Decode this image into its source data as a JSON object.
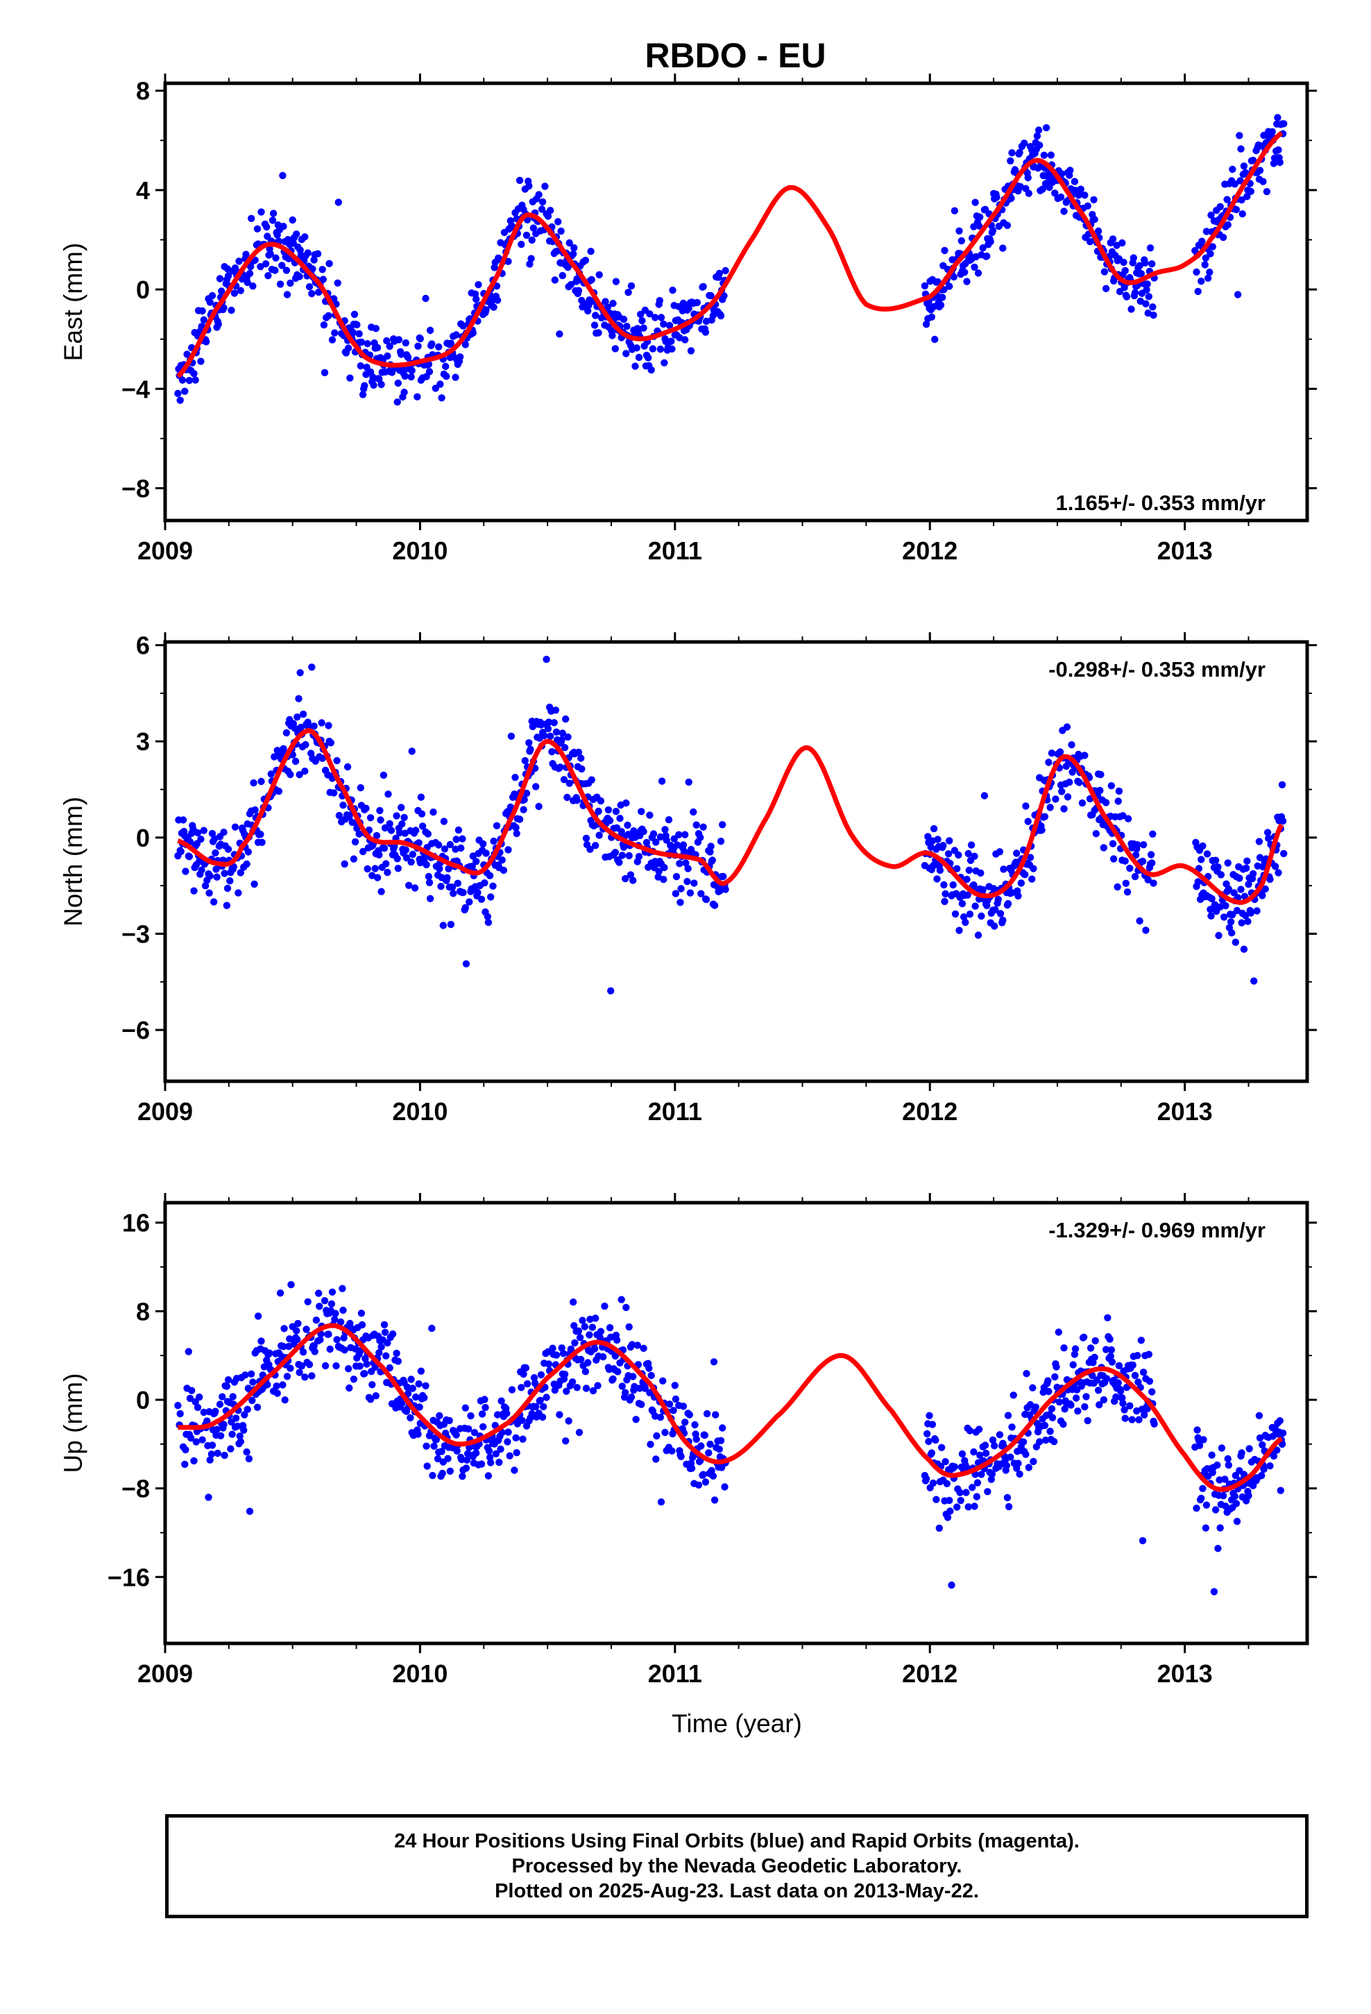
{
  "title": "RBDO - EU",
  "xlabel": "Time (year)",
  "footer": {
    "line1": "24 Hour Positions Using Final Orbits (blue) and Rapid Orbits (magenta).",
    "line2": "Processed by the Nevada Geodetic Laboratory.",
    "line3": "Plotted on 2025-Aug-23. Last data on 2013-May-22."
  },
  "colors": {
    "points": "#0000ff",
    "model": "#ff0000",
    "axes": "#000000"
  },
  "chart_data": [
    {
      "type": "scatter",
      "component": "east",
      "ylabel": "East (mm)",
      "rate": "1.165+/- 0.353 mm/yr",
      "xlim": [
        2009.0,
        2013.48
      ],
      "ylim": [
        -9.3,
        8.3
      ],
      "yticks": [
        8,
        4,
        0,
        -4,
        -8
      ],
      "yticklabels": [
        "8",
        "4",
        "0",
        "−4",
        "−8"
      ],
      "xticks": [
        2009,
        2010,
        2011,
        2012,
        2013
      ],
      "xticklabels": [
        "2009",
        "2010",
        "2011",
        "2012",
        "2013"
      ],
      "model_curve": {
        "name": "",
        "x": [
          2009.05,
          2009.2,
          2009.4,
          2009.6,
          2009.75,
          2009.85,
          2010.0,
          2010.15,
          2010.3,
          2010.42,
          2010.6,
          2010.8,
          2011.0,
          2011.15,
          2011.3,
          2011.45,
          2011.6,
          2011.75,
          2012.0,
          2012.1,
          2012.25,
          2012.42,
          2012.6,
          2012.75,
          2012.9,
          2013.0,
          2013.1,
          2013.25,
          2013.38
        ],
        "y": [
          -3.5,
          -0.8,
          1.8,
          0.3,
          -2.3,
          -3.0,
          -2.9,
          -2.2,
          0.5,
          3.0,
          1.0,
          -1.8,
          -1.6,
          -0.5,
          2.0,
          4.1,
          2.5,
          -0.6,
          -0.3,
          1.0,
          3.0,
          5.2,
          3.0,
          0.4,
          0.7,
          1.0,
          2.0,
          4.5,
          6.3
        ]
      },
      "points": {
        "segments": [
          {
            "start": 2009.05,
            "end": 2011.2,
            "density": 0.003
          },
          {
            "start": 2011.98,
            "end": 2012.88,
            "density": 0.003
          },
          {
            "start": 2013.04,
            "end": 2013.39,
            "density": 0.003
          }
        ],
        "scatter_sd": 1.1
      }
    },
    {
      "type": "scatter",
      "component": "north",
      "ylabel": "North (mm)",
      "rate": "-0.298+/- 0.353 mm/yr",
      "xlim": [
        2009.0,
        2013.48
      ],
      "ylim": [
        -7.6,
        6.1
      ],
      "yticks": [
        6,
        3,
        0,
        -3,
        -6
      ],
      "yticklabels": [
        "6",
        "3",
        "0",
        "−3",
        "−6"
      ],
      "xticks": [
        2009,
        2010,
        2011,
        2012,
        2013
      ],
      "xticklabels": [
        "2009",
        "2010",
        "2011",
        "2012",
        "2013"
      ],
      "model_curve": {
        "name": "",
        "x": [
          2009.05,
          2009.2,
          2009.3,
          2009.55,
          2009.7,
          2009.8,
          2009.95,
          2010.15,
          2010.25,
          2010.35,
          2010.5,
          2010.7,
          2010.9,
          2011.1,
          2011.2,
          2011.35,
          2011.52,
          2011.7,
          2011.85,
          2012.0,
          2012.2,
          2012.35,
          2012.52,
          2012.7,
          2012.85,
          2013.0,
          2013.2,
          2013.3,
          2013.38
        ],
        "y": [
          -0.1,
          -0.8,
          -0.3,
          3.3,
          1.5,
          0.0,
          -0.2,
          -0.9,
          -1.0,
          0.5,
          3.0,
          0.5,
          -0.4,
          -0.7,
          -1.4,
          0.5,
          2.8,
          0.0,
          -0.9,
          -0.5,
          -1.8,
          -1.0,
          2.5,
          0.5,
          -1.1,
          -0.9,
          -2.0,
          -1.5,
          0.4
        ]
      },
      "points": {
        "segments": [
          {
            "start": 2009.05,
            "end": 2011.2,
            "density": 0.003
          },
          {
            "start": 2011.98,
            "end": 2012.88,
            "density": 0.003
          },
          {
            "start": 2013.04,
            "end": 2013.39,
            "density": 0.003
          }
        ],
        "scatter_sd": 1.0
      }
    },
    {
      "type": "scatter",
      "component": "up",
      "ylabel": "Up (mm)",
      "rate": "-1.329+/- 0.969 mm/yr",
      "xlim": [
        2009.0,
        2013.48
      ],
      "ylim": [
        -22.0,
        17.8
      ],
      "yticks": [
        16,
        8,
        0,
        -8,
        -16
      ],
      "yticklabels": [
        "16",
        "8",
        "0",
        "−8",
        "−16"
      ],
      "xticks": [
        2009,
        2010,
        2011,
        2012,
        2013
      ],
      "xticklabels": [
        "2009",
        "2010",
        "2011",
        "2012",
        "2013"
      ],
      "model_curve": {
        "name": "",
        "x": [
          2009.05,
          2009.2,
          2009.4,
          2009.65,
          2009.85,
          2010.0,
          2010.15,
          2010.35,
          2010.5,
          2010.7,
          2010.9,
          2011.05,
          2011.2,
          2011.4,
          2011.65,
          2011.85,
          2012.0,
          2012.1,
          2012.3,
          2012.5,
          2012.68,
          2012.85,
          2013.0,
          2013.12,
          2013.25,
          2013.38
        ],
        "y": [
          -2.5,
          -2.0,
          2.0,
          6.7,
          3.0,
          -1.5,
          -4.0,
          -2.0,
          2.0,
          5.2,
          1.5,
          -4.0,
          -5.5,
          -1.5,
          4.0,
          -1.0,
          -5.5,
          -6.8,
          -4.5,
          0.5,
          2.8,
          0.0,
          -5.0,
          -8.0,
          -7.0,
          -3.5
        ]
      },
      "points": {
        "segments": [
          {
            "start": 2009.05,
            "end": 2011.2,
            "density": 0.003
          },
          {
            "start": 2011.98,
            "end": 2012.88,
            "density": 0.003
          },
          {
            "start": 2013.04,
            "end": 2013.39,
            "density": 0.003
          }
        ],
        "scatter_sd": 3.2
      }
    }
  ]
}
